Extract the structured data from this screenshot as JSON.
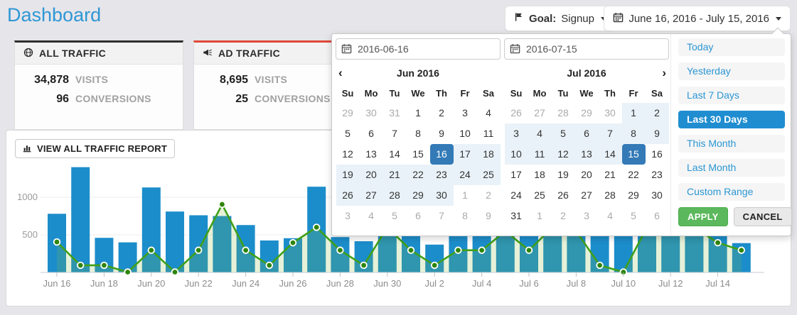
{
  "page": {
    "title": "Dashboard"
  },
  "header": {
    "goal_button": {
      "label": "Goal:",
      "value": "Signup"
    },
    "daterange_button": {
      "value": "June 16, 2016 - July 15, 2016"
    }
  },
  "cards": [
    {
      "title": "ALL TRAFFIC",
      "icon": "globe-icon",
      "accent": "#2f2f2f",
      "rows": [
        {
          "value": "34,878",
          "label": "VISITS"
        },
        {
          "value": "96",
          "label": "CONVERSIONS"
        }
      ]
    },
    {
      "title": "AD TRAFFIC",
      "icon": "megaphone-icon",
      "accent": "#e0483a",
      "rows": [
        {
          "value": "8,695",
          "label": "VISITS"
        },
        {
          "value": "25",
          "label": "CONVERSIONS"
        }
      ]
    }
  ],
  "report_button": {
    "label": "VIEW ALL TRAFFIC REPORT",
    "icon": "bar-chart-icon"
  },
  "chart_data": {
    "type": "bar",
    "title": "",
    "xlabel": "",
    "ylabel": "",
    "ylim": [
      0,
      1500
    ],
    "gridlines": [
      500,
      1000
    ],
    "grid": true,
    "legend": "none",
    "x_label_every": 2,
    "categories": [
      "Jun 16",
      "Jun 17",
      "Jun 18",
      "Jun 19",
      "Jun 20",
      "Jun 21",
      "Jun 22",
      "Jun 23",
      "Jun 24",
      "Jun 25",
      "Jun 26",
      "Jun 27",
      "Jun 28",
      "Jun 29",
      "Jun 30",
      "Jul 1",
      "Jul 2",
      "Jul 3",
      "Jul 4",
      "Jul 5",
      "Jul 6",
      "Jul 7",
      "Jul 8",
      "Jul 9",
      "Jul 10",
      "Jul 11",
      "Jul 12",
      "Jul 13",
      "Jul 14",
      "Jul 15"
    ],
    "series": [
      {
        "name": "visits",
        "type": "bar",
        "color": "#1c8dcb",
        "values": [
          780,
          1400,
          460,
          400,
          1130,
          810,
          760,
          750,
          630,
          425,
          455,
          1140,
          470,
          415,
          900,
          820,
          370,
          700,
          860,
          790,
          620,
          880,
          750,
          650,
          700,
          850,
          800,
          900,
          1000,
          390
        ]
      },
      {
        "name": "conversions",
        "type": "line",
        "color": "#3fa018",
        "marker_color": "#2e850c",
        "area_color": "rgba(130,185,60,0.2)",
        "values": [
          405,
          95,
          95,
          5,
          295,
          5,
          295,
          905,
          295,
          95,
          395,
          600,
          295,
          95,
          600,
          295,
          95,
          295,
          295,
          550,
          295,
          600,
          550,
          95,
          5,
          600,
          650,
          600,
          395,
          295
        ]
      }
    ]
  },
  "datepicker": {
    "start_input": "2016-06-16",
    "end_input": "2016-07-15",
    "months": [
      {
        "title": "Jun 2016",
        "prev": true,
        "next": false,
        "weekdays": [
          "Su",
          "Mo",
          "Tu",
          "We",
          "Th",
          "Fr",
          "Sa"
        ],
        "weeks": [
          [
            [
              "29",
              "mut"
            ],
            [
              "30",
              "mut"
            ],
            [
              "31",
              "mut"
            ],
            [
              "1",
              ""
            ],
            [
              "2",
              ""
            ],
            [
              "3",
              ""
            ],
            [
              "4",
              ""
            ]
          ],
          [
            [
              "5",
              ""
            ],
            [
              "6",
              ""
            ],
            [
              "7",
              ""
            ],
            [
              "8",
              ""
            ],
            [
              "9",
              ""
            ],
            [
              "10",
              ""
            ],
            [
              "11",
              ""
            ]
          ],
          [
            [
              "12",
              ""
            ],
            [
              "13",
              ""
            ],
            [
              "14",
              ""
            ],
            [
              "15",
              ""
            ],
            [
              "16",
              "sel"
            ],
            [
              "17",
              "in"
            ],
            [
              "18",
              "in"
            ]
          ],
          [
            [
              "19",
              "in"
            ],
            [
              "20",
              "in"
            ],
            [
              "21",
              "in"
            ],
            [
              "22",
              "in"
            ],
            [
              "23",
              "in"
            ],
            [
              "24",
              "in"
            ],
            [
              "25",
              "in"
            ]
          ],
          [
            [
              "26",
              "in"
            ],
            [
              "27",
              "in"
            ],
            [
              "28",
              "in"
            ],
            [
              "29",
              "in"
            ],
            [
              "30",
              "in"
            ],
            [
              "1",
              "mut"
            ],
            [
              "2",
              "mut"
            ]
          ],
          [
            [
              "3",
              "mut"
            ],
            [
              "4",
              "mut"
            ],
            [
              "5",
              "mut"
            ],
            [
              "6",
              "mut"
            ],
            [
              "7",
              "mut"
            ],
            [
              "8",
              "mut"
            ],
            [
              "9",
              "mut"
            ]
          ]
        ]
      },
      {
        "title": "Jul 2016",
        "prev": false,
        "next": true,
        "weekdays": [
          "Su",
          "Mo",
          "Tu",
          "We",
          "Th",
          "Fr",
          "Sa"
        ],
        "weeks": [
          [
            [
              "26",
              "mut"
            ],
            [
              "27",
              "mut"
            ],
            [
              "28",
              "mut"
            ],
            [
              "29",
              "mut"
            ],
            [
              "30",
              "mut"
            ],
            [
              "1",
              "in"
            ],
            [
              "2",
              "in"
            ]
          ],
          [
            [
              "3",
              "in"
            ],
            [
              "4",
              "in"
            ],
            [
              "5",
              "in"
            ],
            [
              "6",
              "in"
            ],
            [
              "7",
              "in"
            ],
            [
              "8",
              "in"
            ],
            [
              "9",
              "in"
            ]
          ],
          [
            [
              "10",
              "in"
            ],
            [
              "11",
              "in"
            ],
            [
              "12",
              "in"
            ],
            [
              "13",
              "in"
            ],
            [
              "14",
              "in"
            ],
            [
              "15",
              "sel"
            ],
            [
              "16",
              ""
            ]
          ],
          [
            [
              "17",
              ""
            ],
            [
              "18",
              ""
            ],
            [
              "19",
              ""
            ],
            [
              "20",
              ""
            ],
            [
              "21",
              ""
            ],
            [
              "22",
              ""
            ],
            [
              "23",
              ""
            ]
          ],
          [
            [
              "24",
              ""
            ],
            [
              "25",
              ""
            ],
            [
              "26",
              ""
            ],
            [
              "27",
              ""
            ],
            [
              "28",
              ""
            ],
            [
              "29",
              ""
            ],
            [
              "30",
              ""
            ]
          ],
          [
            [
              "31",
              ""
            ],
            [
              "1",
              "mut"
            ],
            [
              "2",
              "mut"
            ],
            [
              "3",
              "mut"
            ],
            [
              "4",
              "mut"
            ],
            [
              "5",
              "mut"
            ],
            [
              "6",
              "mut"
            ]
          ]
        ]
      }
    ],
    "presets": [
      {
        "label": "Today"
      },
      {
        "label": "Yesterday"
      },
      {
        "label": "Last 7 Days"
      },
      {
        "label": "Last 30 Days",
        "active": true
      },
      {
        "label": "This Month"
      },
      {
        "label": "Last Month"
      },
      {
        "label": "Custom Range"
      }
    ],
    "apply_label": "APPLY",
    "cancel_label": "CANCEL"
  },
  "icons": {
    "prev_chevron": "‹",
    "next_chevron": "›"
  },
  "colors": {
    "page_bg": "#e6e5ea",
    "title_blue": "#2e97d5",
    "bar_blue": "#1c8dcb",
    "line_green": "#3fa018",
    "selected_day": "#337ab7",
    "range_bg": "#e9f2f8",
    "active_preset": "#1f8dd0",
    "apply_green": "#5cb85c",
    "all_accent": "#2f2f2f",
    "ad_accent": "#e0483a"
  }
}
